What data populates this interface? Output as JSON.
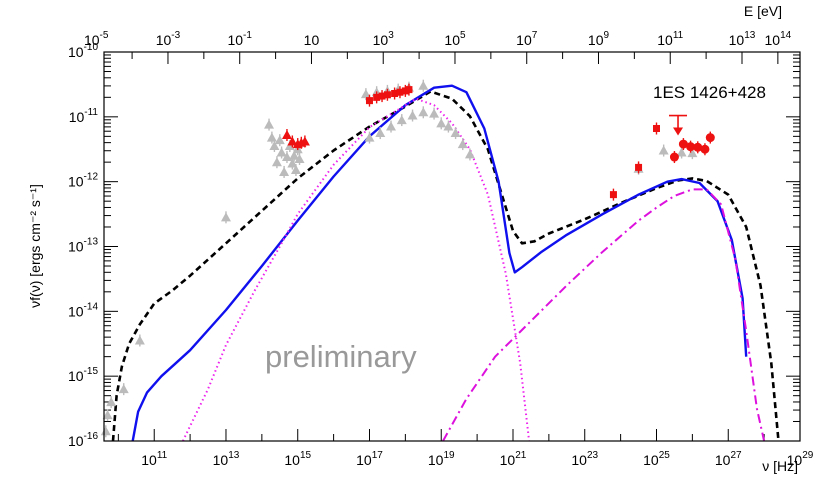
{
  "chart_data": {
    "type": "scatter",
    "source_name": "1ES 1426+428",
    "watermark": "preliminary",
    "xlabel_bottom": "ν [Hz]",
    "xlabel_top": "E [eV]",
    "ylabel": "νf(ν) [ergs cm⁻² s⁻¹]",
    "xlim_log10_hz": [
      9.6,
      29.0
    ],
    "ylim_log10": [
      -16,
      -10
    ],
    "x_scale": "log",
    "y_scale": "log",
    "bottom_ticks": [
      {
        "base": "10",
        "exp": "11",
        "log": 11
      },
      {
        "base": "10",
        "exp": "13",
        "log": 13
      },
      {
        "base": "10",
        "exp": "15",
        "log": 15
      },
      {
        "base": "10",
        "exp": "17",
        "log": 17
      },
      {
        "base": "10",
        "exp": "19",
        "log": 19
      },
      {
        "base": "10",
        "exp": "21",
        "log": 21
      },
      {
        "base": "10",
        "exp": "23",
        "log": 23
      },
      {
        "base": "10",
        "exp": "25",
        "log": 25
      },
      {
        "base": "10",
        "exp": "27",
        "log": 27
      },
      {
        "base": "10",
        "exp": "29",
        "log": 29
      }
    ],
    "top_ticks": [
      {
        "base": "10",
        "exp": "-5",
        "log": -5
      },
      {
        "base": "10",
        "exp": "-3",
        "log": -3
      },
      {
        "base": "10",
        "exp": "-1",
        "log": -1
      },
      {
        "base": "10",
        "exp": "",
        "log": 1
      },
      {
        "base": "10",
        "exp": "3",
        "log": 3
      },
      {
        "base": "10",
        "exp": "5",
        "log": 5
      },
      {
        "base": "10",
        "exp": "7",
        "log": 7
      },
      {
        "base": "10",
        "exp": "9",
        "log": 9
      },
      {
        "base": "10",
        "exp": "11",
        "log": 11
      },
      {
        "base": "10",
        "exp": "13",
        "log": 13
      },
      {
        "base": "10",
        "exp": "14",
        "log": 14
      }
    ],
    "y_ticks": [
      {
        "base": "10",
        "exp": "-10",
        "log": -10
      },
      {
        "base": "10",
        "exp": "-11",
        "log": -11
      },
      {
        "base": "10",
        "exp": "-12",
        "log": -12
      },
      {
        "base": "10",
        "exp": "-13",
        "log": -13
      },
      {
        "base": "10",
        "exp": "-14",
        "log": -14
      },
      {
        "base": "10",
        "exp": "-15",
        "log": -15
      },
      {
        "base": "10",
        "exp": "-16",
        "log": -16
      }
    ],
    "colors": {
      "total_model": "#000000",
      "second_model": "#1010ee",
      "sync_component": "#ee22ee",
      "ic_component": "#dd11dd",
      "data_red": "#ee1111",
      "data_gray": "#bbbbbb"
    },
    "series": [
      {
        "name": "black dashed model",
        "style": "dashed",
        "color_key": "total_model",
        "points": [
          [
            9.85,
            -16.0
          ],
          [
            9.95,
            -15.3
          ],
          [
            10.1,
            -14.85
          ],
          [
            10.3,
            -14.5
          ],
          [
            10.6,
            -14.2
          ],
          [
            11.0,
            -13.88
          ],
          [
            11.5,
            -13.68
          ],
          [
            12.0,
            -13.45
          ],
          [
            13.0,
            -12.95
          ],
          [
            14.0,
            -12.45
          ],
          [
            15.0,
            -11.95
          ],
          [
            16.0,
            -11.52
          ],
          [
            17.0,
            -11.15
          ],
          [
            18.0,
            -10.84
          ],
          [
            18.7,
            -10.61
          ],
          [
            19.3,
            -10.72
          ],
          [
            19.8,
            -10.99
          ],
          [
            20.3,
            -11.5
          ],
          [
            20.7,
            -12.22
          ],
          [
            21.0,
            -12.76
          ],
          [
            21.25,
            -12.95
          ],
          [
            21.6,
            -12.92
          ],
          [
            22.0,
            -12.8
          ],
          [
            23.0,
            -12.58
          ],
          [
            24.0,
            -12.33
          ],
          [
            25.0,
            -12.1
          ],
          [
            25.6,
            -11.98
          ],
          [
            26.0,
            -11.95
          ],
          [
            26.4,
            -11.99
          ],
          [
            27.0,
            -12.2
          ],
          [
            27.5,
            -12.7
          ],
          [
            27.9,
            -13.6
          ],
          [
            28.2,
            -14.8
          ],
          [
            28.4,
            -16.0
          ]
        ]
      },
      {
        "name": "blue solid model",
        "style": "solid",
        "color_key": "second_model",
        "points": [
          [
            10.4,
            -16.0
          ],
          [
            10.55,
            -15.55
          ],
          [
            10.8,
            -15.25
          ],
          [
            11.2,
            -15.0
          ],
          [
            11.6,
            -14.8
          ],
          [
            12.0,
            -14.6
          ],
          [
            13.0,
            -13.98
          ],
          [
            14.0,
            -13.3
          ],
          [
            15.0,
            -12.6
          ],
          [
            16.0,
            -11.92
          ],
          [
            17.0,
            -11.3
          ],
          [
            18.0,
            -10.82
          ],
          [
            18.8,
            -10.55
          ],
          [
            19.3,
            -10.52
          ],
          [
            19.7,
            -10.62
          ],
          [
            20.2,
            -11.18
          ],
          [
            20.6,
            -12.0
          ],
          [
            20.9,
            -13.1
          ],
          [
            21.05,
            -13.4
          ],
          [
            21.25,
            -13.32
          ],
          [
            21.8,
            -13.08
          ],
          [
            22.5,
            -12.82
          ],
          [
            23.5,
            -12.5
          ],
          [
            24.5,
            -12.2
          ],
          [
            25.3,
            -12.0
          ],
          [
            25.7,
            -11.96
          ],
          [
            26.2,
            -12.02
          ],
          [
            26.7,
            -12.3
          ],
          [
            27.1,
            -12.9
          ],
          [
            27.4,
            -13.8
          ],
          [
            27.5,
            -14.7
          ]
        ]
      },
      {
        "name": "magenta dotted synchrotron",
        "style": "dotted",
        "color_key": "sync_component",
        "points": [
          [
            11.8,
            -16.0
          ],
          [
            12.5,
            -15.2
          ],
          [
            13.0,
            -14.52
          ],
          [
            13.8,
            -13.68
          ],
          [
            14.5,
            -13.0
          ],
          [
            15.0,
            -12.5
          ],
          [
            16.0,
            -11.74
          ],
          [
            17.0,
            -11.16
          ],
          [
            18.0,
            -10.82
          ],
          [
            18.3,
            -10.72
          ],
          [
            18.8,
            -10.82
          ],
          [
            19.3,
            -11.1
          ],
          [
            19.8,
            -11.5
          ],
          [
            20.3,
            -12.2
          ],
          [
            20.8,
            -13.42
          ],
          [
            21.2,
            -14.8
          ],
          [
            21.45,
            -16.0
          ]
        ]
      },
      {
        "name": "magenta dash-dot inverse Compton",
        "style": "dashdot",
        "color_key": "ic_component",
        "points": [
          [
            19.05,
            -16.0
          ],
          [
            19.7,
            -15.35
          ],
          [
            20.5,
            -14.7
          ],
          [
            21.5,
            -14.15
          ],
          [
            22.5,
            -13.6
          ],
          [
            23.5,
            -13.08
          ],
          [
            24.5,
            -12.6
          ],
          [
            25.0,
            -12.4
          ],
          [
            25.5,
            -12.22
          ],
          [
            26.0,
            -12.12
          ],
          [
            26.4,
            -12.12
          ],
          [
            26.8,
            -12.35
          ],
          [
            27.2,
            -13.2
          ],
          [
            27.5,
            -14.3
          ],
          [
            27.8,
            -15.5
          ],
          [
            28.0,
            -16.0
          ]
        ]
      }
    ],
    "data_points": [
      {
        "name": "archival low",
        "color_key": "data_gray",
        "marker": "triangle",
        "points": [
          [
            9.65,
            -15.85
          ],
          [
            9.7,
            -15.6
          ],
          [
            9.8,
            -15.4
          ],
          [
            10.15,
            -15.2
          ],
          [
            10.6,
            -14.45
          ],
          [
            13.0,
            -12.55
          ],
          [
            14.2,
            -11.12
          ],
          [
            14.28,
            -11.32
          ],
          [
            14.35,
            -11.45
          ],
          [
            14.42,
            -11.7
          ],
          [
            14.5,
            -11.36
          ],
          [
            14.55,
            -11.55
          ],
          [
            14.62,
            -11.85
          ],
          [
            14.7,
            -11.62
          ],
          [
            14.78,
            -11.45
          ],
          [
            14.85,
            -11.72
          ],
          [
            14.9,
            -11.6
          ],
          [
            14.95,
            -11.82
          ],
          [
            15.0,
            -11.5
          ],
          [
            15.05,
            -11.65
          ]
        ]
      },
      {
        "name": "archival X-ray low state",
        "color_key": "data_gray",
        "marker": "triangle",
        "points": [
          [
            17.0,
            -11.32
          ],
          [
            17.3,
            -11.25
          ],
          [
            17.6,
            -11.15
          ],
          [
            17.9,
            -11.05
          ],
          [
            18.2,
            -10.98
          ],
          [
            18.5,
            -10.93
          ],
          [
            18.8,
            -10.95
          ],
          [
            19.0,
            -11.1
          ],
          [
            19.2,
            -11.15
          ],
          [
            19.4,
            -11.25
          ],
          [
            19.6,
            -11.42
          ],
          [
            19.8,
            -11.58
          ]
        ]
      },
      {
        "name": "archival high state",
        "color_key": "data_gray",
        "marker": "triangle",
        "points": [
          [
            16.9,
            -10.65
          ],
          [
            17.2,
            -10.62
          ],
          [
            17.5,
            -10.6
          ],
          [
            17.8,
            -10.58
          ],
          [
            18.1,
            -10.55
          ],
          [
            18.5,
            -10.52
          ],
          [
            24.5,
            -11.8
          ],
          [
            25.2,
            -11.52
          ],
          [
            25.7,
            -11.55
          ],
          [
            26.0,
            -11.56
          ]
        ]
      },
      {
        "name": "red optical",
        "color_key": "data_red",
        "marker": "triangle",
        "points": [
          [
            14.7,
            -11.28
          ],
          [
            14.85,
            -11.38
          ],
          [
            15.0,
            -11.42
          ],
          [
            15.1,
            -11.4
          ],
          [
            15.2,
            -11.38
          ]
        ]
      },
      {
        "name": "red X-ray",
        "color_key": "data_red",
        "marker": "square",
        "points": [
          [
            17.0,
            -10.75
          ],
          [
            17.2,
            -10.7
          ],
          [
            17.35,
            -10.68
          ],
          [
            17.5,
            -10.66
          ],
          [
            17.7,
            -10.64
          ],
          [
            17.85,
            -10.62
          ],
          [
            18.0,
            -10.6
          ],
          [
            18.1,
            -10.58
          ]
        ]
      },
      {
        "name": "red gamma Fermi",
        "color_key": "data_red",
        "marker": "square",
        "points": [
          [
            23.8,
            -12.2
          ],
          [
            24.5,
            -11.78
          ],
          [
            25.0,
            -11.18
          ]
        ]
      },
      {
        "name": "red VHE",
        "color_key": "data_red",
        "marker": "circle",
        "points": [
          [
            25.5,
            -11.62
          ],
          [
            25.75,
            -11.42
          ],
          [
            25.95,
            -11.46
          ],
          [
            26.15,
            -11.47
          ],
          [
            26.35,
            -11.5
          ],
          [
            26.5,
            -11.32
          ]
        ]
      }
    ],
    "upper_limit": {
      "x_log": 25.6,
      "y_log": -10.98
    }
  }
}
